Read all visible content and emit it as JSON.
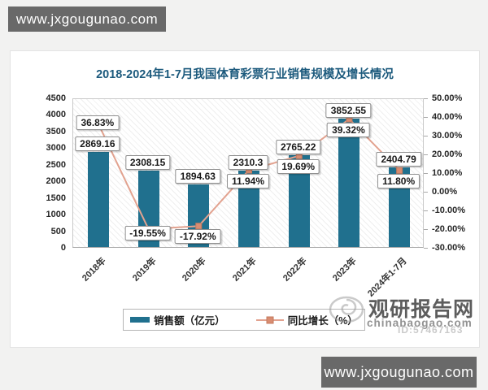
{
  "watermark_top": "www.jxgougunao.com",
  "watermark_bottom": "www.jxgougunao.com",
  "stamp": {
    "name": "观研报告网",
    "domain": "chinabaogao.com",
    "id_text": "ID:57467163"
  },
  "chart_data": {
    "type": "bar",
    "subtype": "bar-line-combo",
    "title": "2018-2024年1-7月我国体育彩票行业销售规模及增长情况",
    "categories": [
      "2018年",
      "2019年",
      "2020年",
      "2021年",
      "2022年",
      "2023年",
      "2024年1-7月"
    ],
    "series": [
      {
        "name": "销售额（亿元）",
        "type": "bar",
        "axis": "left",
        "color": "#20708e",
        "values": [
          2869.16,
          2308.15,
          1894.63,
          2310.3,
          2765.22,
          3852.55,
          2404.79
        ]
      },
      {
        "name": "同比增长（%）",
        "type": "line",
        "axis": "right",
        "color": "#e2a28f",
        "marker_color": "#d98d72",
        "values": [
          36.83,
          -19.55,
          -17.92,
          11.94,
          19.69,
          39.32,
          11.8
        ],
        "labels": [
          "36.83%",
          "-19.55%",
          "-17.92%",
          "11.94%",
          "19.69%",
          "39.32%",
          "11.80%"
        ]
      }
    ],
    "left_axis": {
      "min": 0,
      "max": 4500,
      "step": 500
    },
    "right_axis": {
      "min": -30,
      "max": 50,
      "step": 10,
      "suffix": "%"
    },
    "legend_position": "bottom",
    "grid": false,
    "plot_background": "diagonal-hatch"
  }
}
